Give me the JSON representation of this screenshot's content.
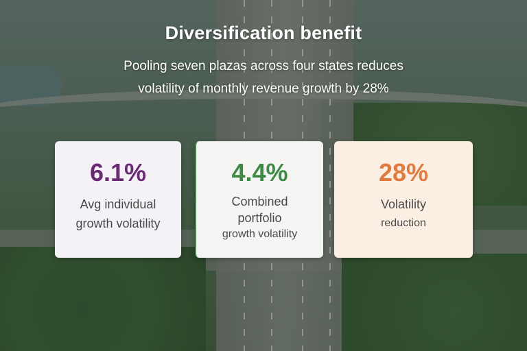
{
  "slide": {
    "title": "Diversification benefit",
    "subtitle_lines": [
      "Pooling seven plazas across four states reduces",
      "volatility of monthly revenue growth by 28%"
    ]
  },
  "cards": [
    {
      "value": "6.1%",
      "label_lines": [
        "Avg individual",
        "growth volatility"
      ],
      "accent_color": "#6a2a73",
      "background": "#f4f2f6"
    },
    {
      "value": "4.4%",
      "label_lines": [
        "Combined",
        "portfolio",
        "growth volatility"
      ],
      "accent_color": "#3c8a44",
      "background": "#f4f4f2"
    },
    {
      "value": "28%",
      "label_lines": [
        "Volatility",
        "reduction"
      ],
      "accent_color": "#e07a3e",
      "background": "#fbeee2"
    }
  ]
}
